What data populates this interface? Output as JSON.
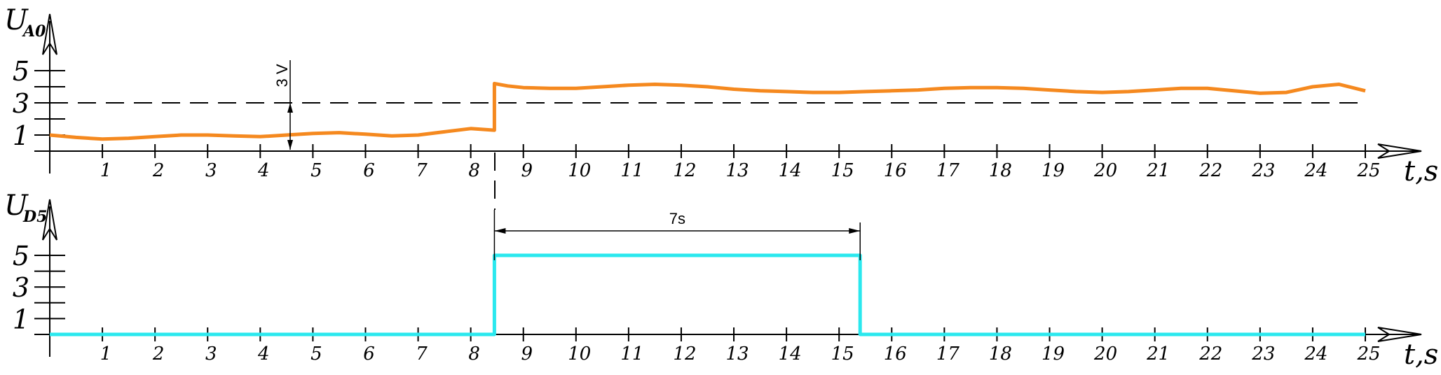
{
  "chart_data": [
    {
      "type": "line",
      "ylabel_main": "U",
      "ylabel_sub": "A0",
      "xlabel": "t,s",
      "xticks": [
        1,
        2,
        3,
        4,
        5,
        6,
        7,
        8,
        9,
        10,
        11,
        12,
        13,
        14,
        15,
        16,
        17,
        18,
        19,
        20,
        21,
        22,
        23,
        24,
        25
      ],
      "yticks": [
        1,
        3,
        5
      ],
      "xlim": [
        0,
        25
      ],
      "ylim": [
        0,
        5
      ],
      "threshold": 3,
      "threshold_label": "3 V",
      "series": [
        {
          "color": "#f5891f",
          "x": [
            0,
            0.5,
            1,
            1.5,
            2,
            2.5,
            3,
            3.5,
            4,
            4.5,
            5,
            5.5,
            6,
            6.5,
            7,
            7.5,
            8,
            8.45,
            8.45,
            8.7,
            9,
            9.5,
            10,
            10.5,
            11,
            11.5,
            12,
            12.5,
            13,
            13.5,
            14,
            14.5,
            15,
            15.5,
            16,
            16.5,
            17,
            17.5,
            18,
            18.5,
            19,
            19.5,
            20,
            20.5,
            21,
            21.5,
            22,
            22.5,
            23,
            23.5,
            24,
            24.5,
            25
          ],
          "y": [
            1.0,
            0.85,
            0.75,
            0.8,
            0.9,
            1.0,
            1.0,
            0.95,
            0.9,
            1.0,
            1.1,
            1.15,
            1.05,
            0.95,
            1.0,
            1.2,
            1.4,
            1.3,
            4.2,
            4.05,
            3.95,
            3.9,
            3.9,
            4.0,
            4.1,
            4.15,
            4.1,
            4.0,
            3.85,
            3.75,
            3.7,
            3.65,
            3.65,
            3.7,
            3.75,
            3.8,
            3.9,
            3.95,
            3.95,
            3.9,
            3.8,
            3.7,
            3.65,
            3.7,
            3.8,
            3.9,
            3.9,
            3.75,
            3.6,
            3.65,
            4.0,
            4.15,
            3.75
          ]
        }
      ]
    },
    {
      "type": "line",
      "ylabel_main": "U",
      "ylabel_sub": "D5",
      "xlabel": "t,s",
      "xticks": [
        1,
        2,
        3,
        4,
        5,
        6,
        7,
        8,
        9,
        10,
        11,
        12,
        13,
        14,
        15,
        16,
        17,
        18,
        19,
        20,
        21,
        22,
        23,
        24,
        25
      ],
      "yticks": [
        1,
        3,
        5
      ],
      "xlim": [
        0,
        25
      ],
      "ylim": [
        0,
        5
      ],
      "duration_label": "7s",
      "series": [
        {
          "color": "#2ae8ee",
          "x": [
            0,
            8.45,
            8.45,
            15.4,
            15.4,
            25
          ],
          "y": [
            0,
            0,
            5,
            5,
            0,
            0
          ]
        }
      ]
    }
  ]
}
